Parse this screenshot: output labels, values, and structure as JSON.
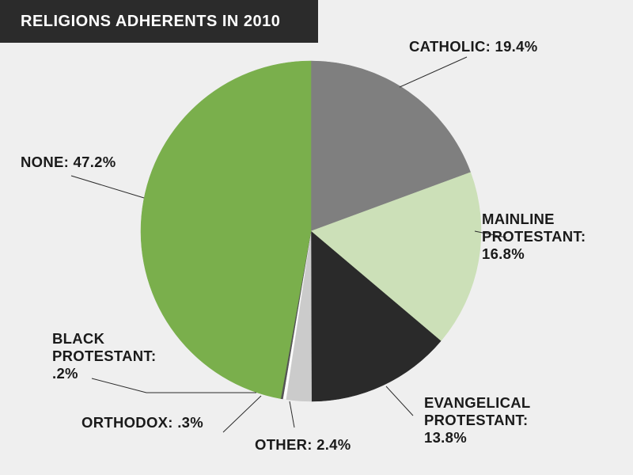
{
  "title": "RELIGIONS ADHERENTS IN 2010",
  "chart_data": {
    "type": "pie",
    "title": "RELIGIONS ADHERENTS IN 2010",
    "slices": [
      {
        "key": "catholic",
        "label_lines": [
          "CATHOLIC: 19.4%"
        ],
        "value": 19.4,
        "color": "#7f7f7f"
      },
      {
        "key": "mainline",
        "label_lines": [
          "MAINLINE",
          "PROTESTANT:",
          "16.8%"
        ],
        "value": 16.8,
        "color": "#cce0b8"
      },
      {
        "key": "evangelical",
        "label_lines": [
          "EVANGELICAL",
          "PROTESTANT:",
          "13.8%"
        ],
        "value": 13.8,
        "color": "#2a2a2a"
      },
      {
        "key": "other",
        "label_lines": [
          "OTHER: 2.4%"
        ],
        "value": 2.4,
        "color": "#cbcbcb"
      },
      {
        "key": "orthodox",
        "label_lines": [
          "ORTHODOX: .3%"
        ],
        "value": 0.3,
        "color": "#ffffff"
      },
      {
        "key": "black",
        "label_lines": [
          "BLACK",
          "PROTESTANT:",
          ".2%"
        ],
        "value": 0.2,
        "color": "#555555"
      },
      {
        "key": "none",
        "label_lines": [
          "NONE: 47.2%"
        ],
        "value": 47.2,
        "color": "#7aaf4c"
      }
    ]
  }
}
